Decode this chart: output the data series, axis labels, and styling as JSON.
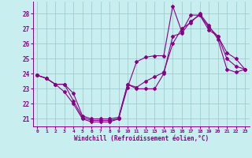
{
  "xlabel": "Windchill (Refroidissement éolien,°C)",
  "bg_color": "#c8eef0",
  "line_color": "#880088",
  "grid_color": "#a0ccd0",
  "xlim": [
    -0.5,
    23.5
  ],
  "ylim": [
    20.5,
    28.8
  ],
  "yticks": [
    21,
    22,
    23,
    24,
    25,
    26,
    27,
    28
  ],
  "xticks": [
    0,
    1,
    2,
    3,
    4,
    5,
    6,
    7,
    8,
    9,
    10,
    11,
    12,
    13,
    14,
    15,
    16,
    17,
    18,
    19,
    20,
    21,
    22,
    23
  ],
  "line1_x": [
    0,
    1,
    2,
    3,
    4,
    5,
    6,
    7,
    8,
    9,
    10,
    11,
    12,
    13,
    14,
    15,
    16,
    17,
    18,
    19,
    20,
    21,
    22,
    23
  ],
  "line1_y": [
    23.9,
    23.7,
    23.3,
    22.8,
    22.0,
    21.0,
    20.8,
    20.8,
    20.8,
    21.0,
    23.1,
    24.8,
    25.1,
    25.2,
    25.2,
    28.5,
    26.8,
    27.9,
    27.9,
    26.9,
    26.5,
    25.4,
    25.0,
    24.3
  ],
  "line2_x": [
    0,
    1,
    2,
    3,
    4,
    5,
    6,
    7,
    8,
    9,
    10,
    11,
    12,
    13,
    14,
    15,
    16,
    17,
    18,
    19,
    20,
    21,
    22,
    23
  ],
  "line2_y": [
    23.9,
    23.7,
    23.3,
    23.3,
    22.7,
    21.2,
    21.0,
    21.0,
    21.0,
    21.1,
    23.3,
    23.1,
    23.5,
    23.8,
    24.1,
    26.0,
    27.0,
    27.4,
    28.0,
    27.2,
    26.3,
    24.3,
    24.1,
    24.3
  ],
  "line3_x": [
    0,
    1,
    2,
    3,
    4,
    5,
    6,
    7,
    8,
    9,
    10,
    11,
    12,
    13,
    14,
    15,
    16,
    17,
    18,
    19,
    20,
    21,
    22,
    23
  ],
  "line3_y": [
    23.9,
    23.7,
    23.3,
    23.3,
    22.2,
    21.1,
    20.9,
    20.9,
    20.9,
    21.0,
    23.3,
    23.0,
    23.0,
    23.0,
    24.0,
    26.5,
    26.7,
    27.5,
    27.9,
    27.1,
    26.5,
    25.0,
    24.5,
    24.3
  ]
}
